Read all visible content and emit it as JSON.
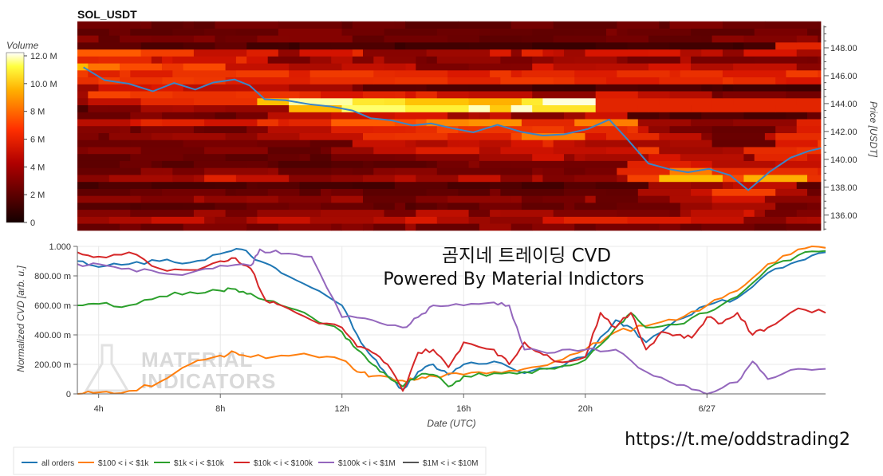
{
  "window": {
    "width": 1107,
    "height": 597
  },
  "heatmap": {
    "title": "SOL_USDT",
    "colorbar_label": "Volume",
    "colorbar_ticks": [
      "12.0 M",
      "10.0 M",
      "8 M",
      "6 M",
      "4 M",
      "2 M",
      "0"
    ],
    "colorbar_values": [
      12,
      10,
      8,
      6,
      4,
      2,
      0
    ],
    "y_label": "Price [USDT]",
    "y_ticks": [
      "148.00",
      "146.00",
      "144.00",
      "142.00",
      "140.00",
      "138.00",
      "136.00"
    ],
    "y_tick_values": [
      148,
      146,
      144,
      142,
      140,
      138,
      136
    ],
    "ylim": [
      134.9,
      149.6
    ],
    "colors": {
      "low": "#140000",
      "mid": "#e02000",
      "high": "#ffffff"
    }
  },
  "chart_data": [
    {
      "type": "line",
      "series": [
        {
          "name": "",
          "points": [
            [
              3.5,
              146.6
            ],
            [
              4.2,
              145.8
            ],
            [
              5,
              145.3
            ],
            [
              5.8,
              145.0
            ],
            [
              6.5,
              145.4
            ],
            [
              7.2,
              145.0
            ],
            [
              7.8,
              145.6
            ],
            [
              8.5,
              145.8
            ],
            [
              9.0,
              145.3
            ],
            [
              9.5,
              144.4
            ],
            [
              10.2,
              144.2
            ],
            [
              11,
              144.0
            ],
            [
              11.7,
              143.8
            ],
            [
              12.4,
              143.5
            ],
            [
              13,
              143.0
            ],
            [
              13.7,
              142.8
            ],
            [
              14.4,
              142.5
            ],
            [
              15,
              142.7
            ],
            [
              15.7,
              142.2
            ],
            [
              16.4,
              142.0
            ],
            [
              17.2,
              142.4
            ],
            [
              18,
              142.0
            ],
            [
              18.7,
              141.6
            ],
            [
              19.4,
              141.9
            ],
            [
              20.2,
              142.3
            ],
            [
              20.9,
              142.8
            ],
            [
              21.5,
              141.5
            ],
            [
              22.2,
              139.8
            ],
            [
              22.9,
              139.4
            ],
            [
              23.5,
              139.0
            ],
            [
              24.2,
              139.2
            ],
            [
              24.9,
              138.9
            ],
            [
              25.5,
              137.9
            ],
            [
              26.2,
              139.2
            ],
            [
              26.9,
              140.0
            ],
            [
              27.5,
              140.6
            ],
            [
              27.9,
              140.8
            ]
          ]
        }
      ],
      "ylim": [
        134.9,
        149.6
      ],
      "xlim": [
        3.3,
        27.9
      ]
    },
    {
      "type": "line",
      "title": "곰지네 트레이딩 CVD",
      "subtitle": "Powered By Material Indictors",
      "xlabel": "Date (UTC)",
      "ylabel": "Normalized CVD [arb. u.]",
      "ylim": [
        0,
        1
      ],
      "xlim": [
        3.3,
        27.9
      ],
      "x_ticks": [
        "4h",
        "8h",
        "12h",
        "16h",
        "20h",
        "6/27"
      ],
      "x_tick_values": [
        4,
        8,
        12,
        16,
        20,
        24
      ],
      "y_ticks": [
        "1.000",
        "800.00 m",
        "600.00 m",
        "400.00 m",
        "200.00 m",
        "0"
      ],
      "y_tick_values": [
        1,
        0.8,
        0.6,
        0.4,
        0.2,
        0
      ],
      "grid": true,
      "legend_position": "bottom-left",
      "series": [
        {
          "name": "all orders",
          "color": "#1f77b4",
          "points": [
            [
              3.3,
              0.9
            ],
            [
              4,
              0.86
            ],
            [
              5,
              0.88
            ],
            [
              6,
              0.9
            ],
            [
              7,
              0.89
            ],
            [
              8,
              0.95
            ],
            [
              8.7,
              0.98
            ],
            [
              9.3,
              0.9
            ],
            [
              10,
              0.82
            ],
            [
              11,
              0.72
            ],
            [
              12,
              0.6
            ],
            [
              12.5,
              0.4
            ],
            [
              13,
              0.25
            ],
            [
              13.5,
              0.12
            ],
            [
              14,
              0.03
            ],
            [
              14.5,
              0.15
            ],
            [
              15,
              0.2
            ],
            [
              15.5,
              0.13
            ],
            [
              16,
              0.2
            ],
            [
              17,
              0.22
            ],
            [
              18,
              0.14
            ],
            [
              19,
              0.18
            ],
            [
              20,
              0.25
            ],
            [
              21,
              0.5
            ],
            [
              21.5,
              0.45
            ],
            [
              22,
              0.35
            ],
            [
              23,
              0.5
            ],
            [
              24,
              0.6
            ],
            [
              25,
              0.65
            ],
            [
              26,
              0.82
            ],
            [
              27,
              0.9
            ],
            [
              27.9,
              0.96
            ]
          ]
        },
        {
          "name": "$100 < i < $1k",
          "color": "#ff7f0e",
          "points": [
            [
              3.3,
              0.0
            ],
            [
              4,
              0.01
            ],
            [
              5,
              0.02
            ],
            [
              6,
              0.08
            ],
            [
              7,
              0.2
            ],
            [
              8,
              0.26
            ],
            [
              8.5,
              0.28
            ],
            [
              9,
              0.25
            ],
            [
              10,
              0.26
            ],
            [
              11,
              0.26
            ],
            [
              12,
              0.23
            ],
            [
              12.5,
              0.15
            ],
            [
              13,
              0.12
            ],
            [
              14,
              0.09
            ],
            [
              14.5,
              0.1
            ],
            [
              15,
              0.12
            ],
            [
              16,
              0.13
            ],
            [
              17,
              0.15
            ],
            [
              18,
              0.17
            ],
            [
              19,
              0.22
            ],
            [
              20,
              0.3
            ],
            [
              21,
              0.42
            ],
            [
              22,
              0.46
            ],
            [
              23,
              0.5
            ],
            [
              24,
              0.6
            ],
            [
              25,
              0.7
            ],
            [
              26,
              0.88
            ],
            [
              27,
              0.98
            ],
            [
              27.9,
              0.99
            ]
          ]
        },
        {
          "name": "$1k < i < $10k",
          "color": "#2ca02c",
          "points": [
            [
              3.3,
              0.6
            ],
            [
              4,
              0.61
            ],
            [
              5,
              0.6
            ],
            [
              6,
              0.66
            ],
            [
              7,
              0.69
            ],
            [
              8,
              0.7
            ],
            [
              8.5,
              0.71
            ],
            [
              9,
              0.68
            ],
            [
              10,
              0.6
            ],
            [
              11,
              0.52
            ],
            [
              12,
              0.42
            ],
            [
              12.5,
              0.3
            ],
            [
              13,
              0.2
            ],
            [
              13.5,
              0.12
            ],
            [
              14,
              0.05
            ],
            [
              14.5,
              0.12
            ],
            [
              15,
              0.13
            ],
            [
              15.5,
              0.05
            ],
            [
              16,
              0.12
            ],
            [
              17,
              0.14
            ],
            [
              18,
              0.15
            ],
            [
              19,
              0.17
            ],
            [
              20,
              0.23
            ],
            [
              21,
              0.45
            ],
            [
              21.5,
              0.55
            ],
            [
              22,
              0.45
            ],
            [
              23,
              0.47
            ],
            [
              24,
              0.55
            ],
            [
              25,
              0.66
            ],
            [
              26,
              0.85
            ],
            [
              27,
              0.94
            ],
            [
              27.9,
              0.97
            ]
          ]
        },
        {
          "name": "$10k < i < $100k",
          "color": "#d62728",
          "points": [
            [
              3.3,
              0.96
            ],
            [
              4,
              0.93
            ],
            [
              5,
              0.96
            ],
            [
              6,
              0.85
            ],
            [
              7,
              0.84
            ],
            [
              8,
              0.9
            ],
            [
              8.5,
              0.92
            ],
            [
              9,
              0.85
            ],
            [
              9.5,
              0.63
            ],
            [
              10,
              0.6
            ],
            [
              11,
              0.5
            ],
            [
              12,
              0.45
            ],
            [
              12.5,
              0.32
            ],
            [
              13,
              0.28
            ],
            [
              13.5,
              0.2
            ],
            [
              14,
              0.02
            ],
            [
              14.5,
              0.28
            ],
            [
              15,
              0.3
            ],
            [
              15.5,
              0.18
            ],
            [
              16,
              0.35
            ],
            [
              17,
              0.3
            ],
            [
              17.5,
              0.2
            ],
            [
              18,
              0.35
            ],
            [
              18.5,
              0.28
            ],
            [
              19,
              0.22
            ],
            [
              20,
              0.25
            ],
            [
              20.5,
              0.55
            ],
            [
              21,
              0.45
            ],
            [
              21.5,
              0.55
            ],
            [
              22,
              0.3
            ],
            [
              22.5,
              0.42
            ],
            [
              23,
              0.4
            ],
            [
              23.5,
              0.38
            ],
            [
              24,
              0.52
            ],
            [
              24.5,
              0.48
            ],
            [
              25,
              0.55
            ],
            [
              25.5,
              0.4
            ],
            [
              26,
              0.45
            ],
            [
              27,
              0.58
            ],
            [
              27.9,
              0.55
            ]
          ]
        },
        {
          "name": "$100k < i < $1M",
          "color": "#9467bd",
          "points": [
            [
              3.3,
              0.88
            ],
            [
              4,
              0.88
            ],
            [
              5,
              0.85
            ],
            [
              6,
              0.82
            ],
            [
              7,
              0.82
            ],
            [
              8,
              0.87
            ],
            [
              9,
              0.87
            ],
            [
              9.3,
              0.98
            ],
            [
              10,
              0.95
            ],
            [
              11,
              0.93
            ],
            [
              12,
              0.52
            ],
            [
              13,
              0.5
            ],
            [
              14,
              0.45
            ],
            [
              14.5,
              0.52
            ],
            [
              15,
              0.6
            ],
            [
              16,
              0.6
            ],
            [
              17,
              0.62
            ],
            [
              17.5,
              0.6
            ],
            [
              18,
              0.3
            ],
            [
              19,
              0.28
            ],
            [
              20,
              0.3
            ],
            [
              21,
              0.3
            ],
            [
              22,
              0.15
            ],
            [
              23,
              0.06
            ],
            [
              23.5,
              0.03
            ],
            [
              24,
              0.0
            ],
            [
              25,
              0.08
            ],
            [
              25.5,
              0.22
            ],
            [
              26,
              0.1
            ],
            [
              27,
              0.17
            ],
            [
              27.9,
              0.17
            ]
          ]
        },
        {
          "name": "$1M < i < $10M",
          "color": "#555555",
          "points": []
        }
      ]
    }
  ],
  "watermark": {
    "line1": "MATERIAL",
    "line2": "INDICATORS"
  },
  "footer": {
    "link": "https://t.me/oddstrading2"
  }
}
